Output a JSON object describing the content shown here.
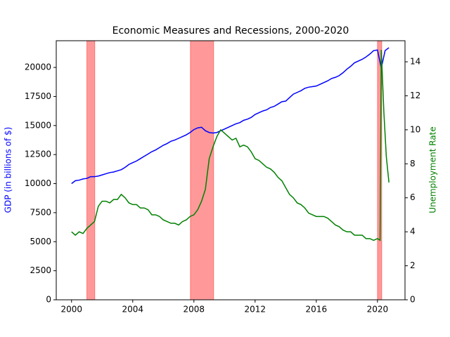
{
  "chart_data": {
    "type": "line",
    "title": "Economic Measures and Recessions, 2000-2020",
    "ylabel": "GDP (in billions of $)",
    "y2label": "Unemployment Rate",
    "xlim": [
      1999.0,
      2021.8
    ],
    "xticks": [
      2000,
      2004,
      2008,
      2012,
      2016,
      2020
    ],
    "ylim": [
      0,
      22300
    ],
    "yticks": [
      0,
      2500,
      5000,
      7500,
      10000,
      12500,
      15000,
      17500,
      20000
    ],
    "y2lim": [
      0,
      15.24
    ],
    "y2ticks": [
      0,
      2,
      4,
      6,
      8,
      10,
      12,
      14
    ],
    "recession_color": "#ff0000",
    "recessions": [
      [
        2001.0,
        2001.52
      ],
      [
        2007.77,
        2009.29
      ],
      [
        2020.0,
        2020.28
      ]
    ],
    "series": [
      {
        "name": "GDP",
        "color": "#0000ff",
        "axis": "y",
        "x": [
          2000,
          2000.25,
          2000.5,
          2000.75,
          2001,
          2001.25,
          2001.5,
          2001.75,
          2002,
          2002.25,
          2002.5,
          2002.75,
          2003,
          2003.25,
          2003.5,
          2003.75,
          2004,
          2004.25,
          2004.5,
          2004.75,
          2005,
          2005.25,
          2005.5,
          2005.75,
          2006,
          2006.25,
          2006.5,
          2006.75,
          2007,
          2007.25,
          2007.5,
          2007.75,
          2008,
          2008.25,
          2008.5,
          2008.75,
          2009,
          2009.25,
          2009.5,
          2009.75,
          2010,
          2010.25,
          2010.5,
          2010.75,
          2011,
          2011.25,
          2011.5,
          2011.75,
          2012,
          2012.25,
          2012.5,
          2012.75,
          2013,
          2013.25,
          2013.5,
          2013.75,
          2014,
          2014.25,
          2014.5,
          2014.75,
          2015,
          2015.25,
          2015.5,
          2015.75,
          2016,
          2016.25,
          2016.5,
          2016.75,
          2017,
          2017.25,
          2017.5,
          2017.75,
          2018,
          2018.25,
          2018.5,
          2018.75,
          2019,
          2019.25,
          2019.5,
          2019.75,
          2020,
          2020.25,
          2020.5,
          2020.75
        ],
        "values": [
          10000,
          10250,
          10300,
          10400,
          10450,
          10600,
          10600,
          10650,
          10750,
          10850,
          10950,
          11000,
          11100,
          11200,
          11400,
          11650,
          11800,
          11950,
          12150,
          12350,
          12550,
          12750,
          12900,
          13100,
          13300,
          13450,
          13650,
          13750,
          13900,
          14050,
          14200,
          14400,
          14650,
          14800,
          14850,
          14550,
          14400,
          14350,
          14400,
          14550,
          14700,
          14850,
          15000,
          15150,
          15250,
          15450,
          15550,
          15700,
          15950,
          16100,
          16250,
          16350,
          16550,
          16650,
          16850,
          17050,
          17100,
          17400,
          17700,
          17850,
          18000,
          18200,
          18300,
          18350,
          18400,
          18550,
          18700,
          18850,
          19050,
          19150,
          19300,
          19550,
          19850,
          20100,
          20400,
          20550,
          20700,
          20900,
          21150,
          21450,
          21500,
          19950,
          21450,
          21700
        ]
      },
      {
        "name": "Unemployment",
        "color": "#008000",
        "axis": "y2",
        "x": [
          2000,
          2000.25,
          2000.5,
          2000.75,
          2001,
          2001.25,
          2001.5,
          2001.75,
          2002,
          2002.25,
          2002.5,
          2002.75,
          2003,
          2003.25,
          2003.5,
          2003.75,
          2004,
          2004.25,
          2004.5,
          2004.75,
          2005,
          2005.25,
          2005.5,
          2005.75,
          2006,
          2006.25,
          2006.5,
          2006.75,
          2007,
          2007.25,
          2007.5,
          2007.75,
          2008,
          2008.25,
          2008.5,
          2008.75,
          2009,
          2009.25,
          2009.5,
          2009.75,
          2010,
          2010.25,
          2010.5,
          2010.75,
          2011,
          2011.25,
          2011.5,
          2011.75,
          2012,
          2012.25,
          2012.5,
          2012.75,
          2013,
          2013.25,
          2013.5,
          2013.75,
          2014,
          2014.25,
          2014.5,
          2014.75,
          2015,
          2015.25,
          2015.5,
          2015.75,
          2016,
          2016.25,
          2016.5,
          2016.75,
          2017,
          2017.25,
          2017.5,
          2017.75,
          2018,
          2018.25,
          2018.5,
          2018.75,
          2019,
          2019.25,
          2019.5,
          2019.75,
          2020,
          2020.17,
          2020.25,
          2020.42,
          2020.58,
          2020.75
        ],
        "values": [
          4.0,
          3.8,
          4.0,
          3.9,
          4.2,
          4.4,
          4.6,
          5.5,
          5.8,
          5.8,
          5.7,
          5.9,
          5.9,
          6.2,
          6.0,
          5.7,
          5.6,
          5.6,
          5.4,
          5.4,
          5.3,
          5.0,
          5.0,
          4.9,
          4.7,
          4.6,
          4.5,
          4.5,
          4.4,
          4.6,
          4.7,
          4.9,
          5.0,
          5.3,
          5.8,
          6.5,
          8.3,
          9.0,
          9.6,
          10.0,
          9.8,
          9.6,
          9.4,
          9.5,
          9.0,
          9.1,
          9.0,
          8.7,
          8.3,
          8.2,
          8.0,
          7.8,
          7.7,
          7.5,
          7.2,
          7.0,
          6.6,
          6.2,
          6.0,
          5.7,
          5.6,
          5.4,
          5.1,
          5.0,
          4.9,
          4.9,
          4.9,
          4.8,
          4.6,
          4.4,
          4.3,
          4.1,
          4.0,
          4.0,
          3.8,
          3.8,
          3.8,
          3.6,
          3.6,
          3.5,
          3.6,
          3.5,
          14.7,
          11.0,
          8.4,
          6.9
        ]
      }
    ]
  }
}
